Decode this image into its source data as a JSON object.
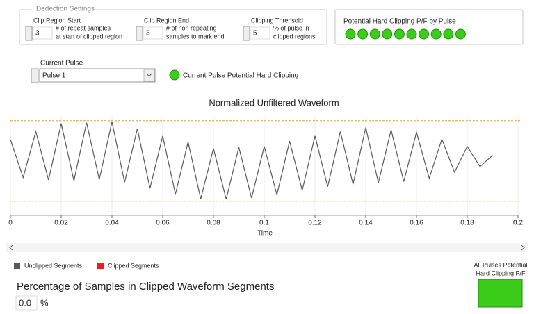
{
  "settings": {
    "title": "Dedection Settings",
    "controls": [
      {
        "label": "Clip Region Start",
        "value": 3,
        "description": [
          "# of repeat samples",
          "at start of clipped region"
        ]
      },
      {
        "label": "Clip Region End",
        "value": 3,
        "description": [
          "# of non repeating",
          "samples to mark end"
        ]
      },
      {
        "label": "Clipping Threhsold",
        "value": 5,
        "description": [
          "% of pulse in",
          "clipped regions"
        ]
      }
    ]
  },
  "pulse_leds": {
    "title": "Potential Hard Clipping P/F by Pulse",
    "states": [
      true,
      true,
      true,
      true,
      true,
      true,
      true,
      true,
      true,
      true
    ]
  },
  "current_pulse": {
    "label": "Current Pulse",
    "value": "Pulse 1",
    "indicator": "Current Pulse Potential Hard Clipping",
    "indicator_state": true
  },
  "chart_data": {
    "type": "line",
    "title": "Normalized Unfiltered Waveform",
    "x_label": "Time",
    "x": [
      0,
      0.005,
      0.01,
      0.015,
      0.02,
      0.025,
      0.03,
      0.035,
      0.04,
      0.045,
      0.05,
      0.055,
      0.06,
      0.065,
      0.07,
      0.075,
      0.08,
      0.085,
      0.09,
      0.095,
      0.1,
      0.105,
      0.11,
      0.115,
      0.12,
      0.125,
      0.13,
      0.135,
      0.14,
      0.145,
      0.15,
      0.155,
      0.16,
      0.165,
      0.17,
      0.175,
      0.18,
      0.185,
      0.19
    ],
    "series": [
      {
        "name": "Unclipped Segments",
        "color": "#595959",
        "values": [
          0.53,
          -0.41,
          0.73,
          -0.47,
          0.93,
          -0.49,
          0.95,
          -0.46,
          0.97,
          -0.53,
          0.8,
          -0.68,
          0.62,
          -0.82,
          0.47,
          -0.94,
          0.31,
          -0.95,
          0.34,
          -0.92,
          0.36,
          -0.84,
          0.49,
          -0.73,
          0.62,
          -0.64,
          0.73,
          -0.58,
          0.83,
          -0.54,
          0.77,
          -0.51,
          0.71,
          -0.43,
          0.54,
          -0.28,
          0.36,
          -0.14,
          0.14
        ]
      },
      {
        "name": "Clipped Segments",
        "color": "#e81e1e",
        "values": [
          null,
          null,
          null,
          null,
          null,
          null,
          null,
          null,
          null,
          null,
          null,
          null,
          null,
          null,
          null,
          null,
          null,
          null,
          null,
          null,
          null,
          null,
          null,
          null,
          null,
          null,
          null,
          null,
          null,
          null,
          null,
          null,
          null,
          null,
          null,
          null,
          null,
          null,
          null
        ]
      }
    ],
    "reference_lines": [
      1,
      -1
    ],
    "reference_color": "#d9a33a",
    "xlim": [
      0,
      0.2
    ],
    "ylim": [
      -1.35,
      1.15
    ],
    "xticks": [
      0,
      0.02,
      0.04,
      0.06,
      0.08,
      0.1,
      0.12,
      0.14,
      0.16,
      0.18,
      0.2
    ],
    "grid": true
  },
  "percentage": {
    "label": "Percentage of Samples in Clipped Waveform Segments",
    "value": "0.0",
    "unit": "%"
  },
  "all_pulses": {
    "label": [
      "All Pulses Potential",
      "Hard Clipping P/F"
    ],
    "state": true
  }
}
